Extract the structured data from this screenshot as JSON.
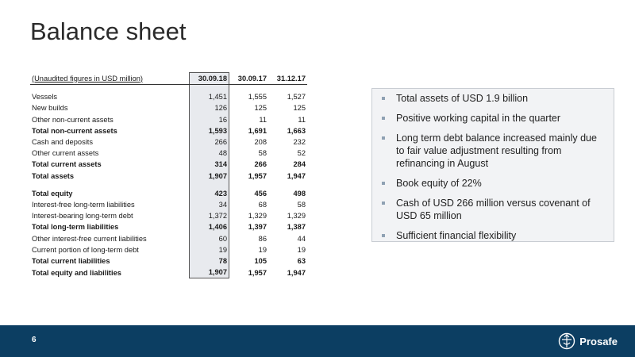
{
  "page": {
    "title": "Balance sheet",
    "page_number": "6"
  },
  "table": {
    "header_label": "(Unaudited figures in USD million)",
    "columns": [
      "30.09.18",
      "30.09.17",
      "31.12.17"
    ],
    "rows": [
      {
        "label": "Vessels",
        "values": [
          "1,451",
          "1,555",
          "1,527"
        ]
      },
      {
        "label": "New builds",
        "values": [
          "126",
          "125",
          "125"
        ]
      },
      {
        "label": "Other non-current assets",
        "values": [
          "16",
          "11",
          "11"
        ]
      },
      {
        "label": "Total non-current assets",
        "values": [
          "1,593",
          "1,691",
          "1,663"
        ]
      },
      {
        "label": "Cash and deposits",
        "values": [
          "266",
          "208",
          "232"
        ]
      },
      {
        "label": "Other current assets",
        "values": [
          "48",
          "58",
          "52"
        ]
      },
      {
        "label": "Total current assets",
        "values": [
          "314",
          "266",
          "284"
        ]
      },
      {
        "label": "Total assets",
        "values": [
          "1,907",
          "1,957",
          "1,947"
        ]
      },
      {
        "label": "Total equity",
        "values": [
          "423",
          "456",
          "498"
        ]
      },
      {
        "label": "Interest-free long-term liabilities",
        "values": [
          "34",
          "68",
          "58"
        ]
      },
      {
        "label": "Interest-bearing long-term debt",
        "values": [
          "1,372",
          "1,329",
          "1,329"
        ]
      },
      {
        "label": "Total long-term liabilities",
        "values": [
          "1,406",
          "1,397",
          "1,387"
        ]
      },
      {
        "label": "Other interest-free current liabilities",
        "values": [
          "60",
          "86",
          "44"
        ]
      },
      {
        "label": "Current portion of long-term debt",
        "values": [
          "19",
          "19",
          "19"
        ]
      },
      {
        "label": "Total current liabilities",
        "values": [
          "78",
          "105",
          "63"
        ]
      },
      {
        "label": "Total equity and liabilities",
        "values": [
          "1,907",
          "1,957",
          "1,947"
        ]
      }
    ]
  },
  "bullets": [
    "Total assets of  USD 1.9 billion",
    "Positive working capital in the quarter",
    "Long term debt balance increased mainly due to fair value adjustment resulting from refinancing in August",
    "Book equity of 22%",
    "Cash of USD 266 million versus covenant of USD 65 million",
    "Sufficient financial flexibility"
  ],
  "footer": {
    "logo_text": "Prosafe",
    "logo_icon": "prosafe-emblem-icon",
    "color": "#0c3e62"
  }
}
